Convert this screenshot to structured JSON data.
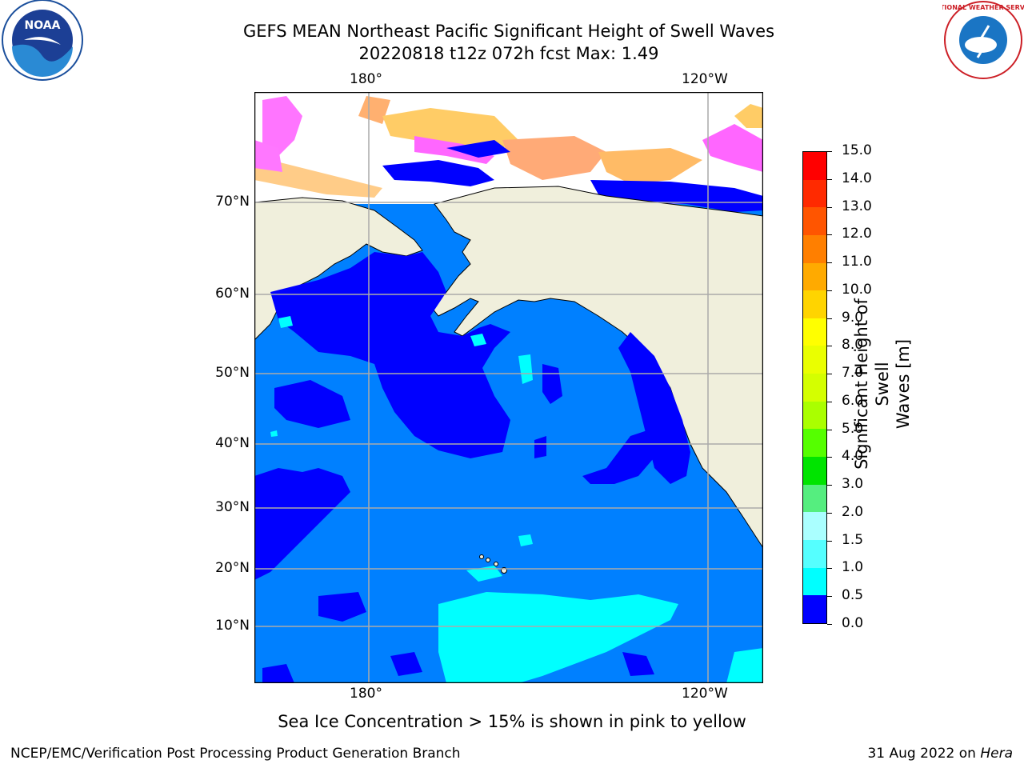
{
  "title_line1": "GEFS MEAN Northeast Pacific Significant Height of Swell Waves",
  "title_line2": "20220818 t12z 072h fcst   Max: 1.49",
  "longitude_ticks": [
    "180°",
    "120°W"
  ],
  "latitude_ticks": [
    "70°N",
    "60°N",
    "50°N",
    "40°N",
    "30°N",
    "20°N",
    "10°N"
  ],
  "colorbar": {
    "label_line1": "Significant Height of Swell",
    "label_line2": "Waves [m]",
    "ticks": [
      "15.0",
      "14.0",
      "13.0",
      "12.0",
      "11.0",
      "10.0",
      "9.0",
      "8.0",
      "7.0",
      "6.0",
      "5.0",
      "4.0",
      "3.0",
      "2.0",
      "1.5",
      "1.0",
      "0.5",
      "0.0"
    ],
    "colors": [
      "#ff0000",
      "#ff2a00",
      "#ff5500",
      "#ff7f00",
      "#ffaa00",
      "#ffd400",
      "#ffff00",
      "#eaff00",
      "#d4ff00",
      "#aaff00",
      "#55ff00",
      "#00e400",
      "#55ee7f",
      "#aaffff",
      "#55ffff",
      "#00ffff",
      "#0080ff",
      "#0000ff"
    ]
  },
  "map_colors": {
    "land": "#f0efdc",
    "ocean_low": "#0000ff",
    "ocean_mid": "#0080ff",
    "ocean_high": "#00ffff",
    "ice_pink": "#ff66ff",
    "ice_yellow": "#ffcc66"
  },
  "note": "Sea Ice Concentration > 15% is shown in pink to yellow",
  "footer_left": "NCEP/EMC/Verification Post Processing Product Generation Branch",
  "footer_right_date": "31 Aug 2022 on ",
  "footer_right_host": "Hera",
  "logos": {
    "left": "NOAA",
    "right": "NATIONAL WEATHER SERVICE"
  }
}
